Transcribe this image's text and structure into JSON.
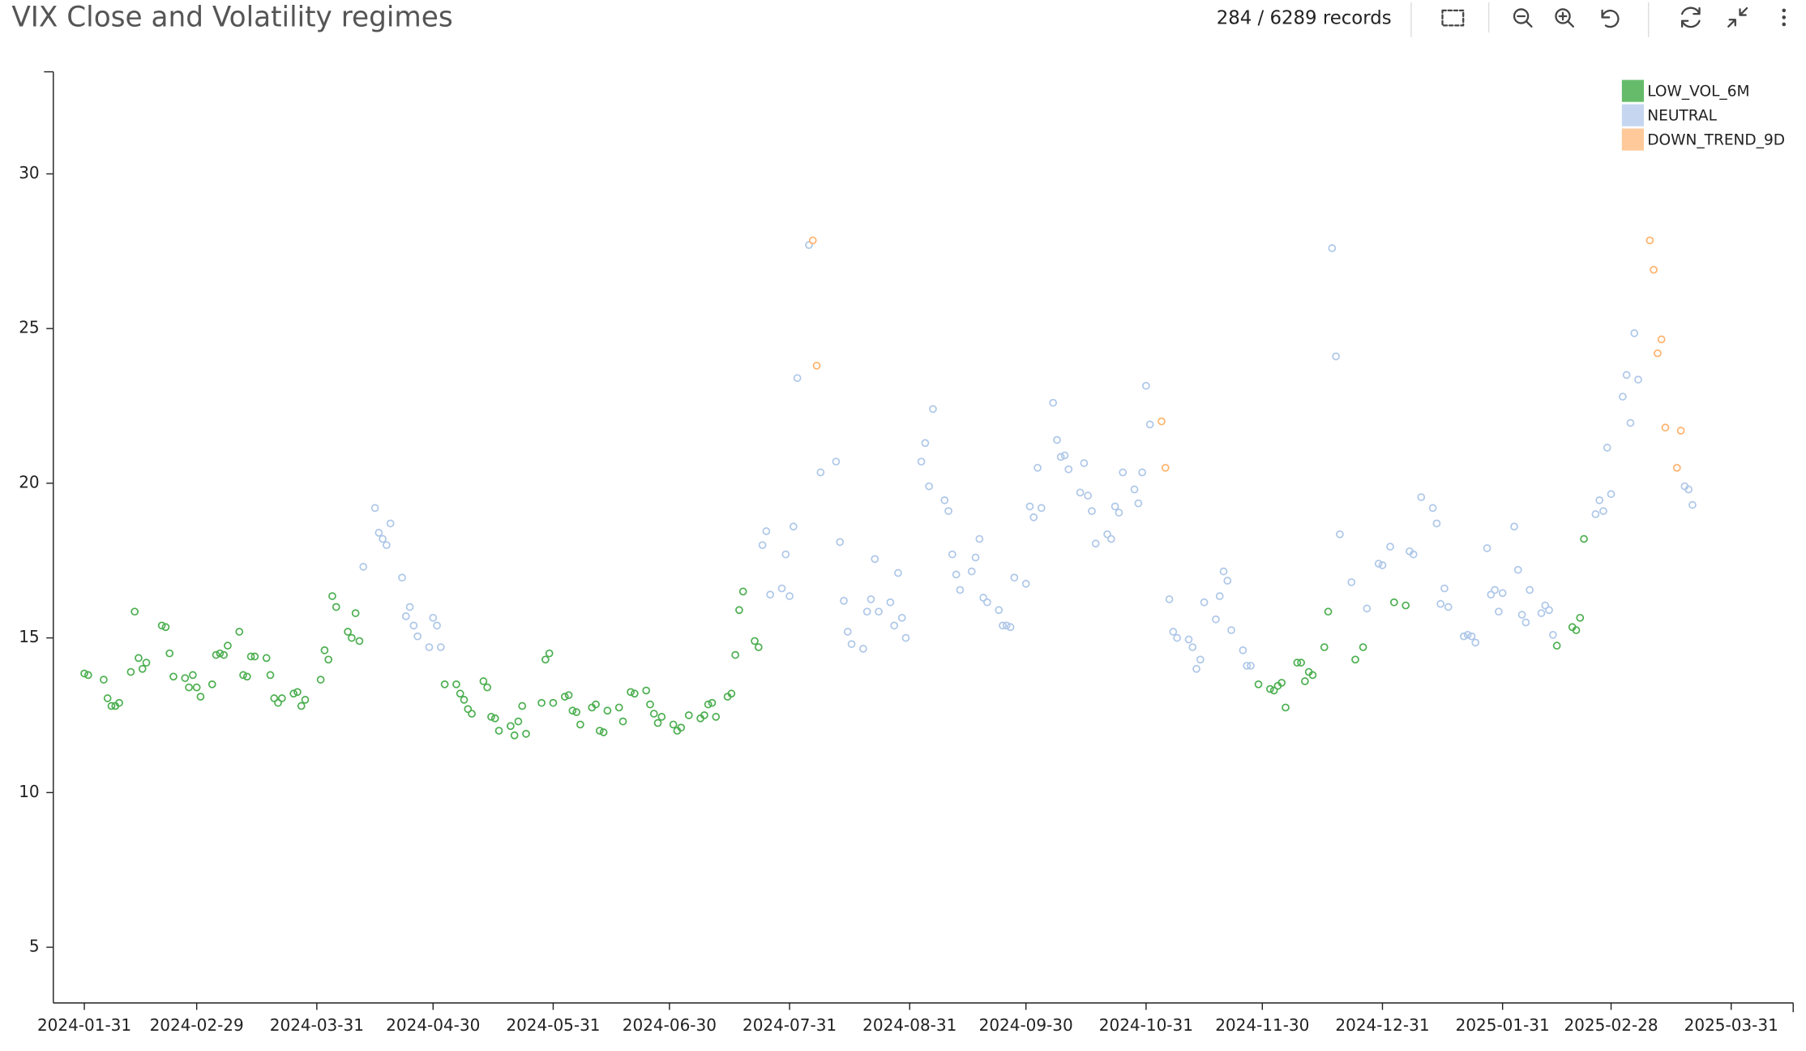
{
  "toolbar": {
    "records": "284 / 6289 records"
  },
  "chart_data": {
    "type": "scatter",
    "title": "VIX Close and Volatility regimes",
    "xlim": [
      "2024-01-23",
      "2025-04-16"
    ],
    "xticks": [
      "2024-01-31",
      "2024-02-29",
      "2024-03-31",
      "2024-04-30",
      "2024-05-31",
      "2024-06-30",
      "2024-07-31",
      "2024-08-31",
      "2024-09-30",
      "2024-10-31",
      "2024-11-30",
      "2024-12-31",
      "2025-01-31",
      "2025-02-28",
      "2025-03-31"
    ],
    "ylim": [
      3.2,
      33.3
    ],
    "yticks": [
      5,
      10,
      15,
      20,
      25,
      30
    ],
    "grid": false,
    "legend": "top-right",
    "series": [
      {
        "name": "LOW_VOL_6M",
        "color": "#4caf50",
        "legend_color": "#66bb6a",
        "x": [
          "2024-01-31",
          "2024-02-01",
          "2024-02-05",
          "2024-02-06",
          "2024-02-07",
          "2024-02-08",
          "2024-02-09",
          "2024-02-12",
          "2024-02-13",
          "2024-02-14",
          "2024-02-15",
          "2024-02-16",
          "2024-02-20",
          "2024-02-21",
          "2024-02-22",
          "2024-02-23",
          "2024-02-26",
          "2024-02-27",
          "2024-02-28",
          "2024-02-29",
          "2024-03-01",
          "2024-03-04",
          "2024-03-05",
          "2024-03-06",
          "2024-03-07",
          "2024-03-08",
          "2024-03-11",
          "2024-03-12",
          "2024-03-13",
          "2024-03-14",
          "2024-03-15",
          "2024-03-18",
          "2024-03-19",
          "2024-03-20",
          "2024-03-21",
          "2024-03-22",
          "2024-03-25",
          "2024-03-26",
          "2024-03-27",
          "2024-03-28",
          "2024-04-01",
          "2024-04-02",
          "2024-04-03",
          "2024-04-04",
          "2024-04-05",
          "2024-04-08",
          "2024-04-09",
          "2024-04-10",
          "2024-04-11",
          "2024-05-03",
          "2024-05-06",
          "2024-05-07",
          "2024-05-08",
          "2024-05-09",
          "2024-05-10",
          "2024-05-13",
          "2024-05-14",
          "2024-05-15",
          "2024-05-16",
          "2024-05-17",
          "2024-05-20",
          "2024-05-21",
          "2024-05-22",
          "2024-05-23",
          "2024-05-24",
          "2024-05-28",
          "2024-05-29",
          "2024-05-30",
          "2024-05-31",
          "2024-06-03",
          "2024-06-04",
          "2024-06-05",
          "2024-06-06",
          "2024-06-07",
          "2024-06-10",
          "2024-06-11",
          "2024-06-12",
          "2024-06-13",
          "2024-06-14",
          "2024-06-17",
          "2024-06-18",
          "2024-06-20",
          "2024-06-21",
          "2024-06-24",
          "2024-06-25",
          "2024-06-26",
          "2024-06-27",
          "2024-06-28",
          "2024-07-01",
          "2024-07-02",
          "2024-07-03",
          "2024-07-05",
          "2024-07-08",
          "2024-07-09",
          "2024-07-10",
          "2024-07-11",
          "2024-07-12",
          "2024-07-15",
          "2024-07-16",
          "2024-07-17",
          "2024-07-18",
          "2024-07-19",
          "2024-07-22",
          "2024-07-23",
          "2024-11-29",
          "2024-12-02",
          "2024-12-03",
          "2024-12-04",
          "2024-12-05",
          "2024-12-06",
          "2024-12-09",
          "2024-12-10",
          "2024-12-11",
          "2024-12-12",
          "2024-12-13",
          "2024-12-16",
          "2024-12-17",
          "2024-12-24",
          "2024-12-26",
          "2025-01-03",
          "2025-01-06",
          "2025-02-14",
          "2025-02-18",
          "2025-02-19",
          "2025-02-20",
          "2025-02-21"
        ],
        "values": [
          13.85,
          13.8,
          13.65,
          13.05,
          12.8,
          12.8,
          12.9,
          13.9,
          15.85,
          14.35,
          14.0,
          14.2,
          15.4,
          15.35,
          14.5,
          13.75,
          13.7,
          13.4,
          13.8,
          13.4,
          13.1,
          13.5,
          14.45,
          14.5,
          14.45,
          14.75,
          15.2,
          13.8,
          13.75,
          14.4,
          14.4,
          14.35,
          13.8,
          13.05,
          12.9,
          13.05,
          13.2,
          13.25,
          12.8,
          13.0,
          13.65,
          14.6,
          14.3,
          16.35,
          16.0,
          15.2,
          15.0,
          15.8,
          14.9,
          13.5,
          13.5,
          13.2,
          13.0,
          12.7,
          12.55,
          13.6,
          13.4,
          12.45,
          12.4,
          12.0,
          12.15,
          11.85,
          12.3,
          12.8,
          11.9,
          12.9,
          14.3,
          14.5,
          12.9,
          13.1,
          13.15,
          12.65,
          12.6,
          12.2,
          12.75,
          12.85,
          12.0,
          11.95,
          12.65,
          12.75,
          12.3,
          13.25,
          13.2,
          13.3,
          12.85,
          12.55,
          12.25,
          12.45,
          12.2,
          12.0,
          12.1,
          12.5,
          12.4,
          12.5,
          12.85,
          12.9,
          12.45,
          13.1,
          13.2,
          14.45,
          15.9,
          16.5,
          14.9,
          14.7,
          13.5,
          13.35,
          13.3,
          13.45,
          13.55,
          12.75,
          14.2,
          14.2,
          13.6,
          13.9,
          13.8,
          14.7,
          15.85,
          14.3,
          14.7,
          16.15,
          16.05,
          14.75,
          15.35,
          15.25,
          15.65,
          18.2
        ]
      },
      {
        "name": "NEUTRAL",
        "color": "#aec7e8",
        "legend_color": "#c6d6f0",
        "x": [
          "2024-04-12",
          "2024-04-15",
          "2024-04-16",
          "2024-04-17",
          "2024-04-18",
          "2024-04-19",
          "2024-04-22",
          "2024-04-23",
          "2024-04-24",
          "2024-04-25",
          "2024-04-26",
          "2024-04-29",
          "2024-04-30",
          "2024-05-01",
          "2024-05-02",
          "2024-07-24",
          "2024-07-25",
          "2024-07-26",
          "2024-07-29",
          "2024-07-30",
          "2024-07-31",
          "2024-08-01",
          "2024-08-02",
          "2024-08-05",
          "2024-08-08",
          "2024-08-12",
          "2024-08-13",
          "2024-08-14",
          "2024-08-15",
          "2024-08-16",
          "2024-08-19",
          "2024-08-20",
          "2024-08-21",
          "2024-08-22",
          "2024-08-23",
          "2024-08-26",
          "2024-08-27",
          "2024-08-28",
          "2024-08-29",
          "2024-08-30",
          "2024-09-03",
          "2024-09-04",
          "2024-09-05",
          "2024-09-06",
          "2024-09-09",
          "2024-09-10",
          "2024-09-11",
          "2024-09-12",
          "2024-09-13",
          "2024-09-16",
          "2024-09-17",
          "2024-09-18",
          "2024-09-19",
          "2024-09-20",
          "2024-09-23",
          "2024-09-24",
          "2024-09-25",
          "2024-09-26",
          "2024-09-27",
          "2024-09-30",
          "2024-10-01",
          "2024-10-02",
          "2024-10-03",
          "2024-10-04",
          "2024-10-07",
          "2024-10-08",
          "2024-10-09",
          "2024-10-10",
          "2024-10-11",
          "2024-10-14",
          "2024-10-15",
          "2024-10-16",
          "2024-10-17",
          "2024-10-18",
          "2024-10-21",
          "2024-10-22",
          "2024-10-23",
          "2024-10-24",
          "2024-10-25",
          "2024-10-28",
          "2024-10-29",
          "2024-10-30",
          "2024-10-31",
          "2024-11-01",
          "2024-11-06",
          "2024-11-07",
          "2024-11-08",
          "2024-11-11",
          "2024-11-12",
          "2024-11-13",
          "2024-11-14",
          "2024-11-15",
          "2024-11-18",
          "2024-11-19",
          "2024-11-20",
          "2024-11-21",
          "2024-11-22",
          "2024-11-25",
          "2024-11-26",
          "2024-11-27",
          "2024-12-18",
          "2024-12-19",
          "2024-12-20",
          "2024-12-23",
          "2024-12-27",
          "2024-12-30",
          "2024-12-31",
          "2025-01-02",
          "2025-01-07",
          "2025-01-08",
          "2025-01-10",
          "2025-01-13",
          "2025-01-14",
          "2025-01-15",
          "2025-01-16",
          "2025-01-17",
          "2025-01-21",
          "2025-01-22",
          "2025-01-23",
          "2025-01-24",
          "2025-01-27",
          "2025-01-28",
          "2025-01-29",
          "2025-01-30",
          "2025-01-31",
          "2025-02-03",
          "2025-02-04",
          "2025-02-05",
          "2025-02-06",
          "2025-02-07",
          "2025-02-10",
          "2025-02-11",
          "2025-02-12",
          "2025-02-13",
          "2025-02-24",
          "2025-02-25",
          "2025-02-26",
          "2025-02-27",
          "2025-02-28",
          "2025-03-03",
          "2025-03-04",
          "2025-03-05",
          "2025-03-06",
          "2025-03-07",
          "2025-03-19",
          "2025-03-20",
          "2025-03-21"
        ],
        "values": [
          17.3,
          19.2,
          18.4,
          18.2,
          18.0,
          18.7,
          16.95,
          15.7,
          16.0,
          15.4,
          15.05,
          14.7,
          15.65,
          15.4,
          14.7,
          18.0,
          18.45,
          16.4,
          16.6,
          17.7,
          16.35,
          18.6,
          23.4,
          27.7,
          20.35,
          20.7,
          18.1,
          16.2,
          15.2,
          14.8,
          14.65,
          15.85,
          16.25,
          17.55,
          15.85,
          16.15,
          15.4,
          17.1,
          15.65,
          15.0,
          20.7,
          21.3,
          19.9,
          22.4,
          19.45,
          19.1,
          17.7,
          17.05,
          16.55,
          17.15,
          17.6,
          18.2,
          16.3,
          16.15,
          15.9,
          15.4,
          15.4,
          15.35,
          16.95,
          16.75,
          19.25,
          18.9,
          20.5,
          19.2,
          22.6,
          21.4,
          20.85,
          20.9,
          20.45,
          19.7,
          20.65,
          19.6,
          19.1,
          18.05,
          18.35,
          18.2,
          19.25,
          19.05,
          20.35,
          19.8,
          19.35,
          20.35,
          23.15,
          21.9,
          16.25,
          15.2,
          15.0,
          14.95,
          14.7,
          14.0,
          14.3,
          16.15,
          15.6,
          16.35,
          17.15,
          16.85,
          15.25,
          14.6,
          14.1,
          14.1,
          27.6,
          24.1,
          18.35,
          16.8,
          15.95,
          17.4,
          17.35,
          17.95,
          17.8,
          17.7,
          19.55,
          19.2,
          18.7,
          16.1,
          16.6,
          16.0,
          15.05,
          15.1,
          15.05,
          14.85,
          17.9,
          16.4,
          16.55,
          15.85,
          16.45,
          18.6,
          17.2,
          15.75,
          15.5,
          16.55,
          15.8,
          16.05,
          15.9,
          15.1,
          19.0,
          19.45,
          19.1,
          21.15,
          19.65,
          22.8,
          23.5,
          21.95,
          24.85,
          23.35,
          19.9,
          19.8,
          19.3
        ]
      },
      {
        "name": "DOWN_TREND_9D",
        "color": "#ffb26b",
        "legend_color": "#ffc999",
        "x": [
          "2024-08-06",
          "2024-08-07",
          "2024-11-04",
          "2024-11-05",
          "2025-03-10",
          "2025-03-11",
          "2025-03-12",
          "2025-03-13",
          "2025-03-14",
          "2025-03-17",
          "2025-03-18"
        ],
        "values": [
          27.85,
          23.8,
          22.0,
          20.5,
          27.85,
          26.9,
          24.2,
          24.65,
          21.8,
          20.5,
          21.7
        ]
      }
    ]
  }
}
